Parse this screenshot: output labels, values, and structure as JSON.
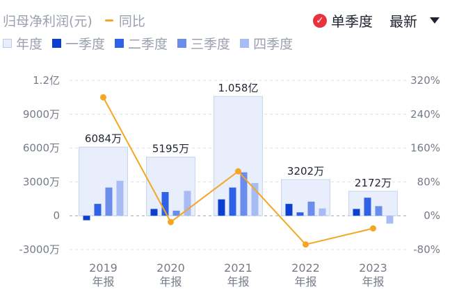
{
  "header": {
    "title": "归母净利润(元)",
    "yoy_legend": "同比",
    "single_quarter": "单季度",
    "latest": "最新"
  },
  "legend": [
    {
      "label": "年度",
      "color": "#e8eefb"
    },
    {
      "label": "一季度",
      "color": "#0b3fd0"
    },
    {
      "label": "二季度",
      "color": "#2f62e6"
    },
    {
      "label": "三季度",
      "color": "#6a8ceb"
    },
    {
      "label": "四季度",
      "color": "#a7bcf5"
    }
  ],
  "chart_data": {
    "type": "bar",
    "categories": [
      "2019",
      "2020",
      "2021",
      "2022",
      "2023"
    ],
    "category_suffix": "年报",
    "y_left": {
      "ticks": [
        "1.2亿",
        "9000万",
        "6000万",
        "3000万",
        "0",
        "-3000万"
      ],
      "ylim": [
        -3000,
        12000
      ],
      "unit": "万"
    },
    "y_right": {
      "ticks": [
        "320%",
        "240%",
        "160%",
        "80%",
        "0%",
        "-80%"
      ],
      "ylim": [
        -80,
        320
      ]
    },
    "annual": {
      "values": [
        6084,
        5195,
        10580,
        3202,
        2172
      ],
      "labels": [
        "6084万",
        "5195万",
        "1.058亿",
        "3202万",
        "2172万"
      ]
    },
    "series": [
      {
        "name": "一季度",
        "color": "#0b3fd0",
        "values": [
          -400,
          600,
          1450,
          1050,
          600
        ]
      },
      {
        "name": "二季度",
        "color": "#2f62e6",
        "values": [
          1050,
          2100,
          2500,
          300,
          1600
        ]
      },
      {
        "name": "三季度",
        "color": "#6a8ceb",
        "values": [
          2500,
          450,
          3850,
          1250,
          850
        ]
      },
      {
        "name": "四季度",
        "color": "#a7bcf5",
        "values": [
          3100,
          2200,
          2900,
          650,
          -700
        ]
      }
    ],
    "yoy": {
      "name": "同比",
      "color": "#f5a623",
      "values": [
        280,
        -15,
        105,
        -68,
        -30
      ]
    },
    "grid": true
  }
}
